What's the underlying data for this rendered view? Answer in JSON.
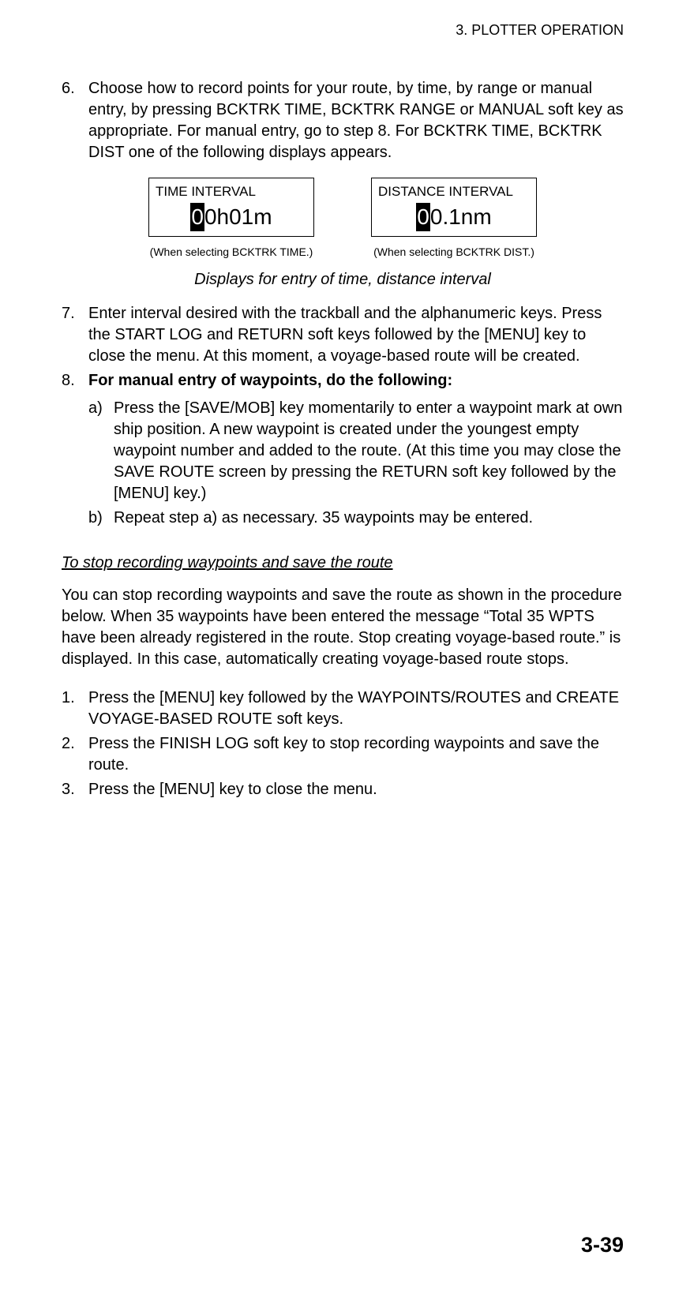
{
  "header": {
    "chapter": "3. PLOTTER OPERATION"
  },
  "steps_top": [
    {
      "num": "6.",
      "text": "Choose how to record points for your route, by time, by range or manual entry, by pressing BCKTRK TIME, BCKTRK RANGE or MANUAL soft key as appropriate. For manual entry, go to step 8. For BCKTRK TIME, BCKTRK DIST one of the following displays appears."
    }
  ],
  "figure": {
    "time_box": {
      "title": "TIME INTERVAL",
      "cursor": "0",
      "rest": "0h01m",
      "caption": "(When selecting BCKTRK TIME.)"
    },
    "dist_box": {
      "title": "DISTANCE INTERVAL",
      "cursor": "0",
      "rest": "0.1nm",
      "caption": "(When selecting BCKTRK DIST.)"
    },
    "main_caption": "Displays for entry of time, distance interval"
  },
  "steps_mid": [
    {
      "num": "7.",
      "text": "Enter interval desired with the trackball and the alphanumeric keys. Press the START LOG and RETURN soft keys followed by the [MENU] key to close the menu. At this moment, a voyage-based route will be created."
    },
    {
      "num": "8.",
      "bold_text": "For manual entry of waypoints, do the following:",
      "sub": [
        {
          "num": "a)",
          "text": "Press the [SAVE/MOB] key momentarily to enter a waypoint mark at own ship position. A new waypoint is created under the youngest empty waypoint number and added to the route. (At this time you may close the SAVE ROUTE screen by pressing the RETURN soft key followed by the [MENU] key.)"
        },
        {
          "num": "b)",
          "text": "Repeat step a) as necessary. 35 waypoints may be entered."
        }
      ]
    }
  ],
  "section2": {
    "heading": "To stop recording waypoints and save the route",
    "para": "You can stop recording waypoints and save the route as shown in the procedure below. When 35 waypoints have been entered the message “Total 35 WPTS have been already registered in the route. Stop creating voyage-based route.” is displayed. In this case, automatically creating voyage-based route stops.",
    "steps": [
      {
        "num": "1.",
        "text": "Press the [MENU] key followed by the WAYPOINTS/ROUTES and CREATE VOYAGE-BASED ROUTE soft keys."
      },
      {
        "num": "2.",
        "text": "Press the FINISH LOG soft key to stop recording waypoints and save the route."
      },
      {
        "num": "3.",
        "text": "Press the [MENU] key to close the menu."
      }
    ]
  },
  "page_number": "3-39"
}
